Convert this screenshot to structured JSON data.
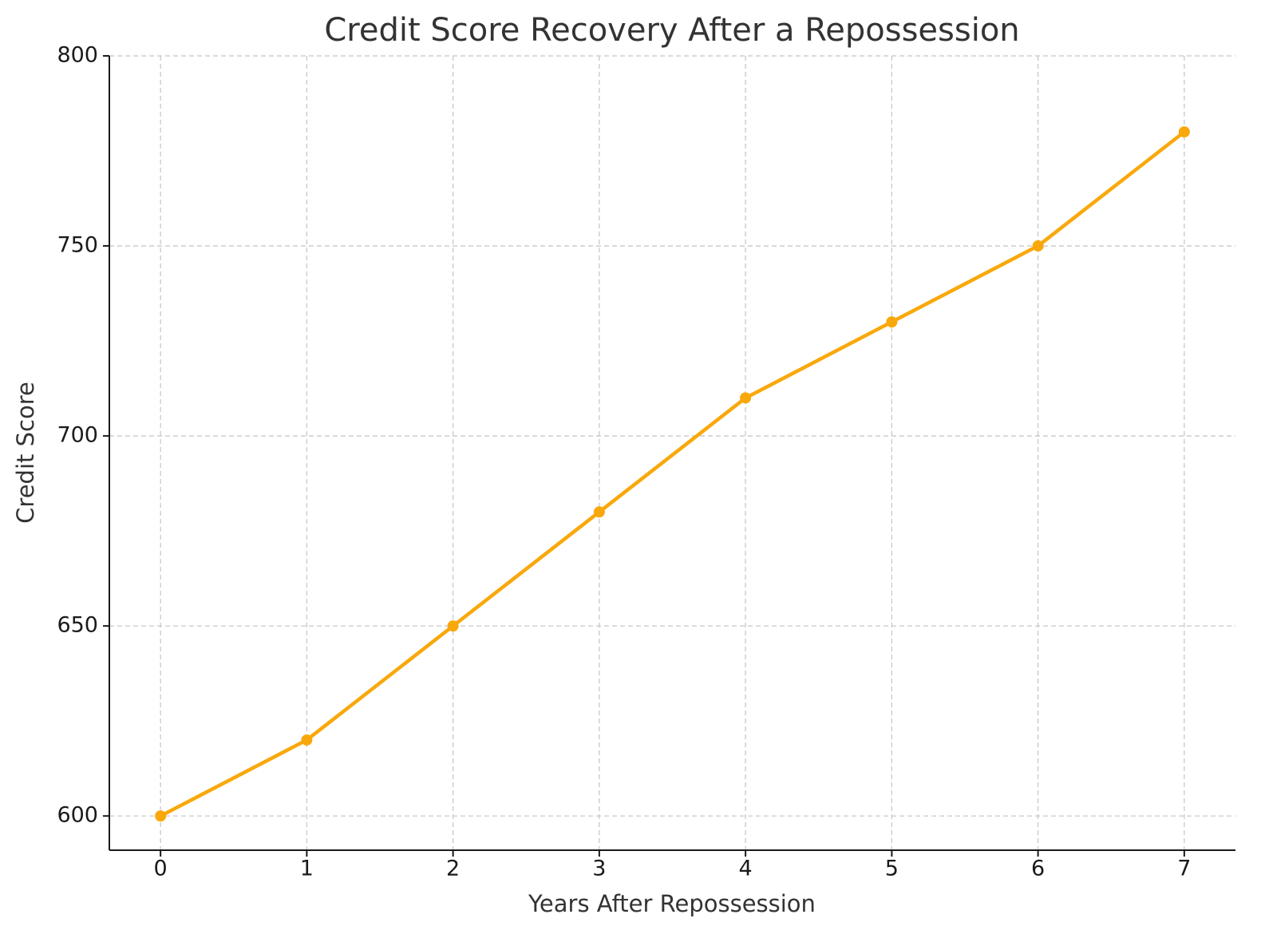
{
  "chart_data": {
    "type": "line",
    "title": "Credit Score Recovery After a Repossession",
    "xlabel": "Years After Repossession",
    "ylabel": "Credit Score",
    "x": [
      0,
      1,
      2,
      3,
      4,
      5,
      6,
      7
    ],
    "series": [
      {
        "name": "Credit Score",
        "color": "#f9a80b",
        "values": [
          600,
          620,
          650,
          680,
          710,
          730,
          750,
          780
        ]
      }
    ],
    "xlim": [
      -0.35,
      7.35
    ],
    "xticks": [
      0,
      1,
      2,
      3,
      4,
      5,
      6,
      7
    ],
    "ylim": [
      591,
      800
    ],
    "yticks": [
      600,
      650,
      700,
      750,
      800
    ],
    "grid": true,
    "legend": false
  }
}
